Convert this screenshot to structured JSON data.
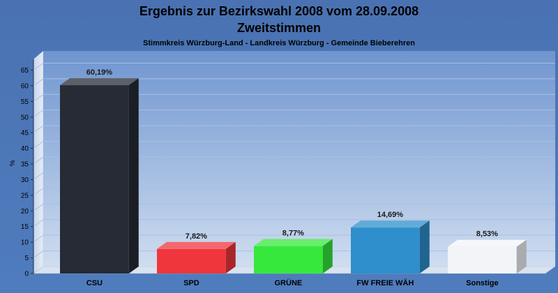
{
  "chart_data": {
    "type": "bar",
    "title": "Ergebnis zur Bezirkswahl 2008 vom 28.09.2008",
    "title2": "Zweitstimmen",
    "subtitle": "Stimmkreis Würzburg-Land - Landkreis Würzburg - Gemeinde Bieberehren",
    "ylabel": "%",
    "ylim": [
      0,
      65
    ],
    "yticks": [
      0,
      5,
      10,
      15,
      20,
      25,
      30,
      35,
      40,
      45,
      50,
      55,
      60,
      65
    ],
    "grid": true,
    "categories": [
      "CSU",
      "SPD",
      "GRÜNE",
      "FW FREIE WÄH",
      "Sonstige"
    ],
    "values": [
      60.19,
      7.82,
      8.77,
      14.69,
      8.53
    ],
    "value_labels": [
      "60,19%",
      "7,82%",
      "8,77%",
      "14,69%",
      "8,53%"
    ],
    "colors": [
      "#262b35",
      "#f0363c",
      "#36e83c",
      "#2e8fcc",
      "#f2f4f8"
    ]
  }
}
